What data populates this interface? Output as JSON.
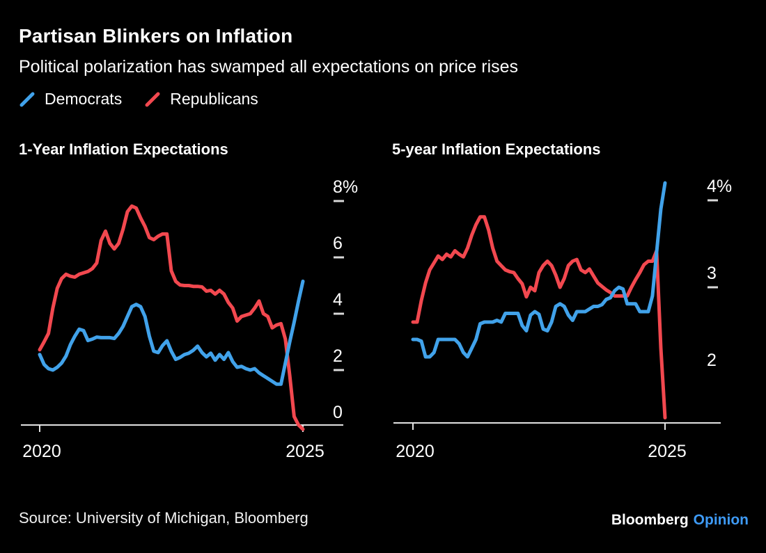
{
  "header": {
    "title": "Partisan Blinkers on Inflation",
    "subtitle": "Political polarization has swamped all expectations on price rises"
  },
  "legend": {
    "items": [
      {
        "label": "Democrats",
        "color_key": "democrats"
      },
      {
        "label": "Republicans",
        "color_key": "republicans"
      }
    ]
  },
  "colors": {
    "background": "#000000",
    "text": "#FFFFFF",
    "democrats": "#41A2EA",
    "republicans": "#F2484F",
    "axis": "#E3E3E3",
    "tick_dash": "#D9D9D9",
    "brand_opinion": "#3E9AF5"
  },
  "chart_data": [
    {
      "type": "line",
      "title": "1-Year Inflation Expectations",
      "unit": "percent",
      "x_axis": {
        "ticks": [
          {
            "label": "2020",
            "value": 2020
          },
          {
            "label": "2025",
            "value": 2025
          }
        ],
        "range": [
          2020,
          2025.2
        ]
      },
      "y_axis": {
        "ticks": [
          {
            "label": "8%",
            "value": 8,
            "dash": true
          },
          {
            "label": "6",
            "value": 6,
            "dash": true
          },
          {
            "label": "4",
            "value": 4,
            "dash": true
          },
          {
            "label": "2",
            "value": 2,
            "dash": true
          },
          {
            "label": "0",
            "value": 0,
            "dash": false
          }
        ],
        "range": [
          -0.3,
          8.3
        ]
      },
      "series": [
        {
          "name": "Democrats",
          "color_key": "democrats",
          "x_start": 2020,
          "x_step_years": 0.0833333,
          "values": [
            2.55,
            2.2,
            2.05,
            2.0,
            2.1,
            2.25,
            2.5,
            2.9,
            3.2,
            3.45,
            3.4,
            3.05,
            3.1,
            3.17,
            3.15,
            3.15,
            3.15,
            3.12,
            3.3,
            3.55,
            3.9,
            4.25,
            4.33,
            4.25,
            3.9,
            3.2,
            2.67,
            2.62,
            2.87,
            3.04,
            2.67,
            2.38,
            2.45,
            2.55,
            2.6,
            2.7,
            2.85,
            2.62,
            2.47,
            2.6,
            2.35,
            2.55,
            2.38,
            2.62,
            2.3,
            2.1,
            2.13,
            2.05,
            2.0,
            2.05,
            1.9,
            1.8,
            1.7,
            1.6,
            1.5,
            1.5,
            2.25,
            3.0,
            3.7,
            4.45,
            5.15
          ]
        },
        {
          "name": "Republicans",
          "color_key": "republicans",
          "x_start": 2020,
          "x_step_years": 0.0833333,
          "values": [
            2.72,
            3.0,
            3.3,
            4.2,
            4.9,
            5.25,
            5.4,
            5.33,
            5.3,
            5.4,
            5.45,
            5.5,
            5.6,
            5.8,
            6.6,
            6.93,
            6.5,
            6.3,
            6.5,
            7.0,
            7.62,
            7.82,
            7.75,
            7.4,
            7.1,
            6.7,
            6.63,
            6.75,
            6.83,
            6.83,
            5.52,
            5.15,
            5.02,
            5.0,
            5.0,
            4.97,
            4.97,
            4.95,
            4.8,
            4.83,
            4.7,
            4.83,
            4.7,
            4.4,
            4.2,
            3.74,
            3.9,
            3.95,
            4.0,
            4.2,
            4.45,
            4.0,
            3.9,
            3.5,
            3.6,
            3.65,
            3.1,
            1.8,
            0.35,
            0.05,
            -0.1
          ]
        }
      ]
    },
    {
      "type": "line",
      "title": "5-year Inflation Expectations",
      "unit": "percent",
      "x_axis": {
        "ticks": [
          {
            "label": "2020",
            "value": 2020
          },
          {
            "label": "2025",
            "value": 2025
          }
        ],
        "range": [
          2020,
          2025.2
        ]
      },
      "y_axis": {
        "ticks": [
          {
            "label": "4%",
            "value": 4,
            "dash": true
          },
          {
            "label": "3",
            "value": 3,
            "dash": true
          },
          {
            "label": "2",
            "value": 2,
            "dash": false
          }
        ],
        "range": [
          1.44,
          4.3
        ]
      },
      "series": [
        {
          "name": "Democrats",
          "color_key": "democrats",
          "x_start": 2020,
          "x_step_years": 0.0833333,
          "values": [
            2.4,
            2.4,
            2.38,
            2.2,
            2.2,
            2.25,
            2.4,
            2.4,
            2.4,
            2.4,
            2.4,
            2.35,
            2.25,
            2.2,
            2.3,
            2.4,
            2.58,
            2.6,
            2.6,
            2.6,
            2.62,
            2.6,
            2.7,
            2.7,
            2.7,
            2.7,
            2.56,
            2.5,
            2.68,
            2.72,
            2.69,
            2.52,
            2.5,
            2.6,
            2.78,
            2.81,
            2.78,
            2.68,
            2.62,
            2.72,
            2.72,
            2.72,
            2.75,
            2.78,
            2.78,
            2.8,
            2.86,
            2.88,
            2.96,
            3.0,
            2.98,
            2.81,
            2.81,
            2.81,
            2.72,
            2.72,
            2.72,
            2.9,
            3.4,
            3.9,
            4.2
          ]
        },
        {
          "name": "Republicans",
          "color_key": "republicans",
          "x_start": 2020,
          "x_step_years": 0.0833333,
          "values": [
            2.6,
            2.6,
            2.85,
            3.05,
            3.2,
            3.28,
            3.36,
            3.32,
            3.38,
            3.35,
            3.42,
            3.38,
            3.35,
            3.45,
            3.6,
            3.72,
            3.81,
            3.81,
            3.66,
            3.45,
            3.3,
            3.25,
            3.2,
            3.18,
            3.17,
            3.1,
            3.04,
            2.89,
            3.0,
            2.96,
            3.17,
            3.25,
            3.3,
            3.25,
            3.14,
            3.0,
            3.1,
            3.25,
            3.3,
            3.32,
            3.2,
            3.17,
            3.21,
            3.13,
            3.05,
            3.01,
            2.97,
            2.94,
            2.9,
            2.9,
            2.9,
            2.9,
            3.0,
            3.09,
            3.17,
            3.26,
            3.3,
            3.3,
            3.42,
            2.3,
            1.5
          ]
        }
      ]
    }
  ],
  "footer": {
    "source": "Source: University of Michigan, Bloomberg",
    "brand": "Bloomberg",
    "brand_suffix": "Opinion"
  }
}
